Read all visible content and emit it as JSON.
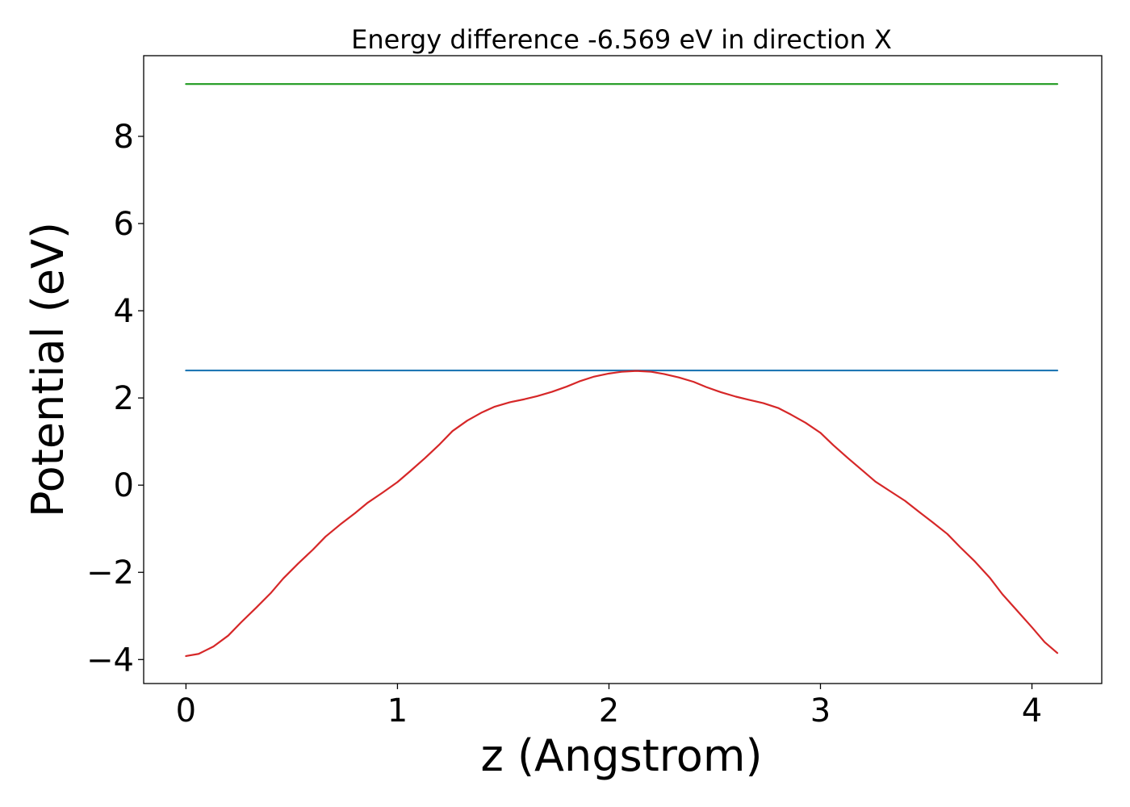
{
  "chart_data": {
    "type": "line",
    "title": "Energy difference -6.569 eV in direction X",
    "xlabel": "z (Angstrom)",
    "ylabel": "Potential (eV)",
    "xlim": [
      -0.2,
      4.33
    ],
    "ylim": [
      -4.55,
      9.85
    ],
    "xticks": [
      0,
      1,
      2,
      3,
      4
    ],
    "xtick_labels": [
      "0",
      "1",
      "2",
      "3",
      "4"
    ],
    "yticks": [
      -4,
      -2,
      0,
      2,
      4,
      6,
      8
    ],
    "ytick_labels": [
      "−4",
      "−2",
      "0",
      "2",
      "4",
      "6",
      "8"
    ],
    "grid": false,
    "series": [
      {
        "color": "#2ca02c",
        "x": [
          0,
          4.12
        ],
        "y": [
          9.2,
          9.2
        ]
      },
      {
        "color": "#1f77b4",
        "x": [
          0,
          4.12
        ],
        "y": [
          2.63,
          2.63
        ]
      },
      {
        "color": "#d62728",
        "x": [
          0,
          0.06,
          0.13,
          0.2,
          0.26,
          0.33,
          0.4,
          0.46,
          0.53,
          0.6,
          0.66,
          0.73,
          0.8,
          0.86,
          0.93,
          1.0,
          1.06,
          1.13,
          1.2,
          1.26,
          1.33,
          1.4,
          1.46,
          1.53,
          1.6,
          1.66,
          1.73,
          1.8,
          1.86,
          1.93,
          2.0,
          2.06,
          2.13,
          2.2,
          2.26,
          2.33,
          2.4,
          2.46,
          2.53,
          2.6,
          2.66,
          2.73,
          2.8,
          2.86,
          2.93,
          3.0,
          3.06,
          3.13,
          3.2,
          3.26,
          3.33,
          3.4,
          3.46,
          3.53,
          3.6,
          3.66,
          3.73,
          3.8,
          3.86,
          3.93,
          4.0,
          4.06,
          4.12
        ],
        "y": [
          -3.92,
          -3.87,
          -3.7,
          -3.45,
          -3.15,
          -2.82,
          -2.48,
          -2.14,
          -1.8,
          -1.48,
          -1.18,
          -0.9,
          -0.64,
          -0.4,
          -0.17,
          0.07,
          0.32,
          0.62,
          0.94,
          1.24,
          1.48,
          1.67,
          1.8,
          1.9,
          1.97,
          2.04,
          2.14,
          2.26,
          2.38,
          2.49,
          2.56,
          2.6,
          2.62,
          2.6,
          2.55,
          2.47,
          2.37,
          2.25,
          2.13,
          2.03,
          1.96,
          1.88,
          1.77,
          1.62,
          1.43,
          1.2,
          0.92,
          0.62,
          0.33,
          0.08,
          -0.14,
          -0.36,
          -0.59,
          -0.85,
          -1.12,
          -1.42,
          -1.75,
          -2.12,
          -2.5,
          -2.88,
          -3.26,
          -3.6,
          -3.85
        ]
      }
    ]
  }
}
